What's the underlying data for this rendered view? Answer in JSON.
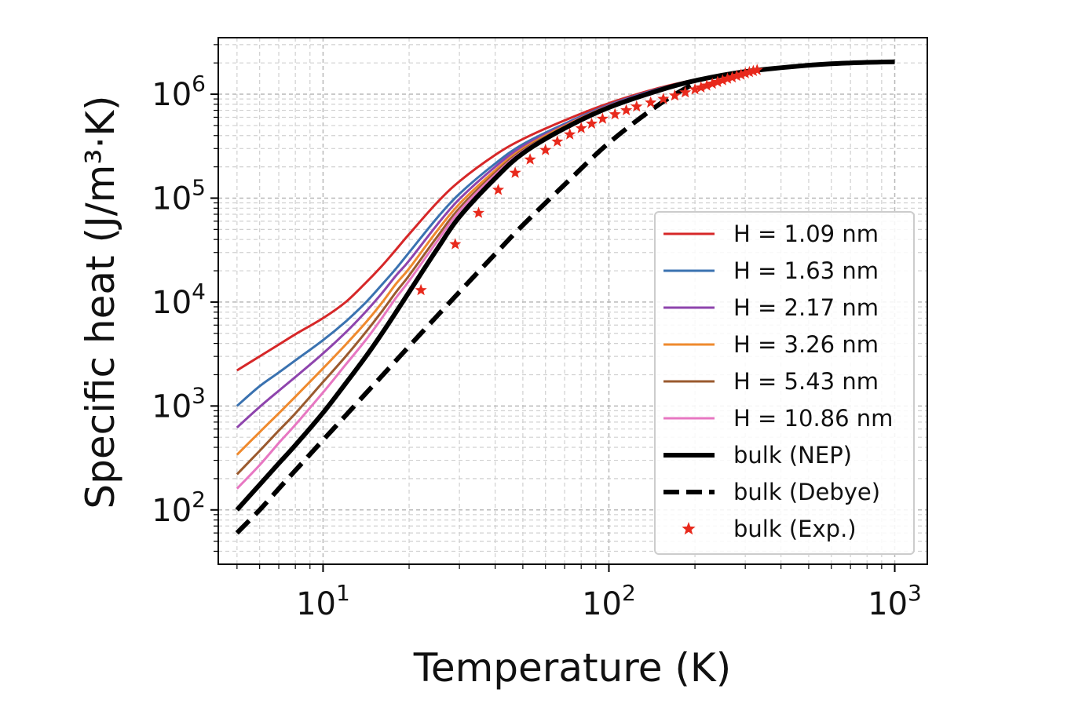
{
  "chart_data": {
    "type": "line",
    "xscale": "log",
    "yscale": "log",
    "xlim": [
      4.3,
      1300
    ],
    "ylim": [
      30,
      3500000
    ],
    "grid": true,
    "legend_position": "lower-right",
    "xlabel": "Temperature (K)",
    "ylabel": "Specific heat (J/m³·K)",
    "x_ticks": [
      {
        "base": "10",
        "exp": "1",
        "value": 10
      },
      {
        "base": "10",
        "exp": "2",
        "value": 100
      },
      {
        "base": "10",
        "exp": "3",
        "value": 1000
      }
    ],
    "y_ticks": [
      {
        "base": "10",
        "exp": "2",
        "value": 100
      },
      {
        "base": "10",
        "exp": "3",
        "value": 1000
      },
      {
        "base": "10",
        "exp": "4",
        "value": 10000
      },
      {
        "base": "10",
        "exp": "5",
        "value": 100000
      },
      {
        "base": "10",
        "exp": "6",
        "value": 1000000
      }
    ],
    "series": [
      {
        "name": "H = 1.09 nm",
        "color": "#d62728",
        "style": "solid",
        "width": 3,
        "x": [
          5,
          6,
          7,
          8,
          10,
          12,
          14,
          16,
          18,
          20,
          25,
          30,
          40,
          50,
          70,
          100,
          150,
          200
        ],
        "y": [
          2200,
          3000,
          3900,
          4900,
          7000,
          10000,
          15000,
          22000,
          32000,
          45000,
          90000,
          145000,
          260000,
          370000,
          560000,
          820000,
          1150000,
          1380000
        ]
      },
      {
        "name": "H = 1.63 nm",
        "color": "#3a72b0",
        "style": "solid",
        "width": 3,
        "x": [
          5,
          6,
          7,
          8,
          10,
          12,
          14,
          16,
          18,
          20,
          25,
          30,
          40,
          50,
          70,
          100,
          150,
          200
        ],
        "y": [
          1000,
          1550,
          2100,
          2750,
          4300,
          6500,
          9700,
          14500,
          21000,
          30000,
          64000,
          110000,
          215000,
          330000,
          520000,
          790000,
          1130000,
          1370000
        ]
      },
      {
        "name": "H = 2.17 nm",
        "color": "#8e44ad",
        "style": "solid",
        "width": 3,
        "x": [
          5,
          6,
          7,
          8,
          10,
          12,
          14,
          16,
          18,
          20,
          25,
          30,
          40,
          50,
          70,
          100,
          150,
          200
        ],
        "y": [
          620,
          980,
          1400,
          1900,
          3200,
          5100,
          7900,
          12000,
          18000,
          25000,
          55000,
          98000,
          200000,
          315000,
          505000,
          780000,
          1120000,
          1365000
        ]
      },
      {
        "name": "H = 3.26 nm",
        "color": "#ef8a2e",
        "style": "solid",
        "width": 3,
        "x": [
          5,
          6,
          7,
          8,
          10,
          12,
          14,
          16,
          18,
          20,
          25,
          30,
          40,
          50,
          70,
          100,
          150,
          200
        ],
        "y": [
          340,
          560,
          850,
          1230,
          2300,
          3900,
          6200,
          9700,
          15000,
          21000,
          48000,
          88000,
          185000,
          300000,
          495000,
          770000,
          1110000,
          1360000
        ]
      },
      {
        "name": "H = 5.43 nm",
        "color": "#9a5a2e",
        "style": "solid",
        "width": 3,
        "x": [
          5,
          6,
          7,
          8,
          10,
          12,
          14,
          16,
          18,
          20,
          25,
          30,
          40,
          50,
          70,
          100,
          150,
          200
        ],
        "y": [
          220,
          370,
          580,
          850,
          1700,
          3000,
          5000,
          8000,
          12500,
          18000,
          42000,
          80000,
          175000,
          290000,
          485000,
          760000,
          1100000,
          1355000
        ]
      },
      {
        "name": "H = 10.86 nm",
        "color": "#e777c2",
        "style": "solid",
        "width": 3,
        "x": [
          5,
          6,
          7,
          8,
          10,
          12,
          14,
          16,
          18,
          20,
          25,
          30,
          40,
          50,
          70,
          100,
          150,
          200
        ],
        "y": [
          160,
          270,
          440,
          660,
          1350,
          2500,
          4200,
          6900,
          11000,
          16000,
          38000,
          75000,
          168000,
          282000,
          478000,
          752000,
          1095000,
          1350000
        ]
      },
      {
        "name": "bulk (NEP)",
        "color": "#000000",
        "style": "solid",
        "width": 6,
        "x": [
          5,
          6,
          7,
          8,
          10,
          12,
          14,
          16,
          18,
          20,
          25,
          30,
          40,
          50,
          70,
          100,
          150,
          200,
          300,
          500,
          700,
          1000
        ],
        "y": [
          100,
          175,
          280,
          420,
          860,
          1650,
          2900,
          4900,
          8000,
          12500,
          32000,
          66000,
          155000,
          270000,
          470000,
          745000,
          1090000,
          1350000,
          1650000,
          1900000,
          2000000,
          2050000
        ]
      },
      {
        "name": "bulk (Debye)",
        "color": "#000000",
        "style": "dashed",
        "width": 6,
        "x": [
          5,
          6,
          7,
          8,
          10,
          12,
          14,
          16,
          18,
          20,
          25,
          30,
          40,
          50,
          70,
          100,
          150,
          200
        ],
        "y": [
          60,
          100,
          160,
          240,
          470,
          810,
          1290,
          1920,
          2740,
          3750,
          7300,
          12500,
          29000,
          55000,
          135000,
          340000,
          800000,
          1280000
        ]
      }
    ],
    "scatter": {
      "name": "bulk (Exp.)",
      "color": "#e8291c",
      "marker": "star",
      "x": [
        22,
        29,
        35,
        41,
        47,
        53,
        60,
        66,
        73,
        80,
        87,
        95,
        105,
        115,
        125,
        140,
        155,
        170,
        185,
        200,
        210,
        220,
        230,
        240,
        250,
        260,
        270,
        280,
        290,
        300,
        310,
        320,
        330
      ],
      "y": [
        13000,
        36000,
        72000,
        120000,
        175000,
        235000,
        290000,
        350000,
        410000,
        470000,
        520000,
        580000,
        640000,
        700000,
        760000,
        830000,
        900000,
        970000,
        1040000,
        1110000,
        1160000,
        1210000,
        1260000,
        1310000,
        1360000,
        1410000,
        1450000,
        1500000,
        1540000,
        1590000,
        1630000,
        1670000,
        1710000
      ]
    }
  }
}
